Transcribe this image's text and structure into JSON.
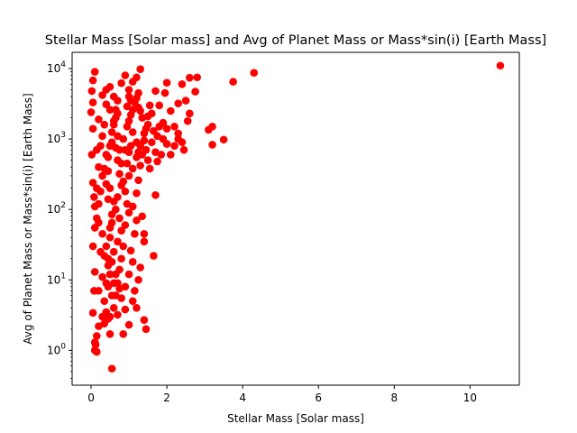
{
  "chart_data": {
    "type": "scatter",
    "title": "Stellar Mass [Solar mass] and Avg of Planet Mass or Mass*sin(i) [Earth Mass]",
    "xlabel": "Stellar Mass [Solar mass]",
    "ylabel": "Avg of Planet Mass or Mass*sin(i) [Earth Mass]",
    "xlim": [
      -0.5,
      11.3
    ],
    "ylim": [
      0.32,
      17000
    ],
    "yscale": "log",
    "grid": false,
    "marker_color": "#ff0000",
    "xticks": [
      {
        "value": 0,
        "label": "0"
      },
      {
        "value": 2,
        "label": "2"
      },
      {
        "value": 4,
        "label": "4"
      },
      {
        "value": 6,
        "label": "6"
      },
      {
        "value": 8,
        "label": "8"
      },
      {
        "value": 10,
        "label": "10"
      }
    ],
    "yticks": [
      {
        "value": 1,
        "base": "10",
        "exp": "0"
      },
      {
        "value": 10,
        "base": "10",
        "exp": "1"
      },
      {
        "value": 100,
        "base": "10",
        "exp": "2"
      },
      {
        "value": 1000,
        "base": "10",
        "exp": "3"
      },
      {
        "value": 10000,
        "base": "10",
        "exp": "4"
      }
    ],
    "series": [
      {
        "points": [
          [
            10.8,
            11000
          ],
          [
            4.3,
            8700
          ],
          [
            3.75,
            6500
          ],
          [
            3.5,
            980
          ],
          [
            3.2,
            830
          ],
          [
            3.1,
            1350
          ],
          [
            3.2,
            1500
          ],
          [
            2.8,
            7500
          ],
          [
            2.6,
            7400
          ],
          [
            2.75,
            4700
          ],
          [
            2.6,
            2300
          ],
          [
            2.4,
            6000
          ],
          [
            2.5,
            3500
          ],
          [
            2.55,
            1800
          ],
          [
            2.3,
            3200
          ],
          [
            2.3,
            1200
          ],
          [
            2.4,
            900
          ],
          [
            2.45,
            700
          ],
          [
            2.2,
            1500
          ],
          [
            2.1,
            2500
          ],
          [
            2.0,
            6300
          ],
          [
            1.95,
            4500
          ],
          [
            2.0,
            850
          ],
          [
            1.9,
            1700
          ],
          [
            1.85,
            600
          ],
          [
            1.8,
            3000
          ],
          [
            1.75,
            1100
          ],
          [
            1.7,
            4800
          ],
          [
            1.7,
            160
          ],
          [
            1.65,
            22
          ],
          [
            1.45,
            2.0
          ],
          [
            1.4,
            2.7
          ],
          [
            1.4,
            35
          ],
          [
            1.4,
            45
          ],
          [
            1.35,
            80
          ],
          [
            1.3,
            9800
          ],
          [
            1.2,
            7500
          ],
          [
            1.25,
            4500
          ],
          [
            1.1,
            6500
          ],
          [
            1.0,
            5000
          ],
          [
            0.9,
            8000
          ],
          [
            0.8,
            6200
          ],
          [
            0.85,
            1.7
          ],
          [
            0.55,
            0.55
          ],
          [
            0.5,
            1.7
          ],
          [
            0.45,
            2.8
          ],
          [
            0.35,
            2.4
          ],
          [
            0.3,
            3.0
          ],
          [
            0.2,
            2.2
          ],
          [
            0.15,
            1.6
          ],
          [
            0.12,
            1.2
          ],
          [
            0.1,
            1.0
          ],
          [
            0.15,
            0.95
          ],
          [
            0.1,
            1.3
          ],
          [
            0.05,
            3.4
          ],
          [
            0.08,
            7.0
          ],
          [
            0.1,
            13
          ],
          [
            0.05,
            30
          ],
          [
            0.1,
            55
          ],
          [
            0.15,
            75
          ],
          [
            0.08,
            150
          ],
          [
            0.05,
            240
          ],
          [
            0.02,
            600
          ],
          [
            0.05,
            1400
          ],
          [
            0.0,
            2400
          ],
          [
            0.05,
            3300
          ],
          [
            0.05,
            6800
          ],
          [
            0.1,
            9000
          ],
          [
            0.02,
            4800
          ],
          [
            0.3,
            4200
          ],
          [
            0.4,
            5000
          ],
          [
            0.5,
            5500
          ],
          [
            0.6,
            4000
          ],
          [
            0.7,
            3500
          ],
          [
            0.25,
            800
          ],
          [
            0.3,
            300
          ],
          [
            0.2,
            120
          ],
          [
            0.25,
            25
          ],
          [
            0.3,
            11
          ],
          [
            0.2,
            7
          ],
          [
            0.35,
            5
          ],
          [
            0.4,
            9
          ],
          [
            0.45,
            16
          ],
          [
            0.5,
            40
          ],
          [
            0.55,
            65
          ],
          [
            0.6,
            130
          ],
          [
            0.5,
            200
          ],
          [
            0.45,
            350
          ],
          [
            0.4,
            600
          ],
          [
            0.55,
            900
          ],
          [
            0.6,
            1800
          ],
          [
            0.65,
            2600
          ],
          [
            0.7,
            1100
          ],
          [
            0.75,
            700
          ],
          [
            0.8,
            450
          ],
          [
            0.85,
            250
          ],
          [
            0.9,
            180
          ],
          [
            0.95,
            120
          ],
          [
            1.0,
            90
          ],
          [
            0.9,
            60
          ],
          [
            0.85,
            30
          ],
          [
            0.8,
            20
          ],
          [
            0.75,
            14
          ],
          [
            0.7,
            9
          ],
          [
            0.65,
            6
          ],
          [
            0.6,
            4
          ],
          [
            0.7,
            3.2
          ],
          [
            0.8,
            5.5
          ],
          [
            0.9,
            8
          ],
          [
            1.0,
            12
          ],
          [
            1.1,
            18
          ],
          [
            1.05,
            26
          ],
          [
            1.15,
            45
          ],
          [
            1.2,
            70
          ],
          [
            1.1,
            110
          ],
          [
            1.2,
            170
          ],
          [
            1.25,
            260
          ],
          [
            1.3,
            420
          ],
          [
            1.35,
            600
          ],
          [
            1.4,
            950
          ],
          [
            1.45,
            1400
          ],
          [
            1.5,
            2100
          ],
          [
            1.55,
            3000
          ],
          [
            1.6,
            2300
          ],
          [
            1.5,
            1600
          ],
          [
            1.4,
            1200
          ],
          [
            1.3,
            800
          ],
          [
            1.2,
            550
          ],
          [
            1.1,
            380
          ],
          [
            1.0,
            300
          ],
          [
            0.95,
            450
          ],
          [
            0.9,
            700
          ],
          [
            0.85,
            1000
          ],
          [
            0.95,
            1500
          ],
          [
            1.05,
            2200
          ],
          [
            1.15,
            3300
          ],
          [
            1.25,
            2800
          ],
          [
            1.35,
            2000
          ],
          [
            1.45,
            700
          ],
          [
            1.5,
            500
          ],
          [
            1.55,
            380
          ],
          [
            1.6,
            900
          ],
          [
            1.65,
            1300
          ],
          [
            1.7,
            650
          ],
          [
            1.75,
            480
          ],
          [
            1.8,
            1500
          ],
          [
            1.9,
            1000
          ],
          [
            2.0,
            1400
          ],
          [
            2.1,
            600
          ],
          [
            2.2,
            800
          ],
          [
            2.3,
            1000
          ],
          [
            1.0,
            4000
          ],
          [
            1.05,
            3500
          ],
          [
            1.1,
            2600
          ],
          [
            0.95,
            2900
          ],
          [
            1.2,
            3800
          ],
          [
            1.3,
            2500
          ],
          [
            1.0,
            1800
          ],
          [
            1.1,
            1250
          ],
          [
            1.2,
            900
          ],
          [
            1.25,
            650
          ],
          [
            1.0,
            650
          ],
          [
            1.05,
            800
          ],
          [
            0.9,
            3.8
          ],
          [
            1.0,
            2.3
          ],
          [
            1.1,
            5
          ],
          [
            1.2,
            4
          ],
          [
            1.15,
            7
          ],
          [
            1.25,
            10
          ],
          [
            1.3,
            15
          ],
          [
            0.75,
            7.5
          ],
          [
            0.65,
            12
          ],
          [
            0.55,
            18
          ],
          [
            0.6,
            25
          ],
          [
            0.7,
            35
          ],
          [
            0.8,
            50
          ],
          [
            0.75,
            75
          ],
          [
            0.65,
            100
          ],
          [
            0.7,
            150
          ],
          [
            0.8,
            220
          ],
          [
            0.75,
            320
          ],
          [
            0.7,
            500
          ],
          [
            0.65,
            750
          ],
          [
            0.3,
            1100
          ],
          [
            0.35,
            1600
          ],
          [
            0.2,
            1900
          ],
          [
            0.15,
            700
          ],
          [
            0.2,
            400
          ],
          [
            0.25,
            180
          ],
          [
            0.1,
            110
          ],
          [
            0.15,
            200
          ],
          [
            0.2,
            65
          ],
          [
            0.3,
            45
          ],
          [
            0.35,
            22
          ],
          [
            0.45,
            8
          ],
          [
            0.4,
            3.5
          ],
          [
            0.5,
            3
          ],
          [
            0.55,
            6
          ],
          [
            0.6,
            9
          ],
          [
            0.5,
            12
          ],
          [
            0.45,
            20
          ],
          [
            0.4,
            30
          ],
          [
            0.5,
            55
          ],
          [
            0.55,
            85
          ],
          [
            0.45,
            140
          ],
          [
            0.4,
            230
          ],
          [
            0.35,
            380
          ],
          [
            0.45,
            550
          ],
          [
            0.5,
            800
          ],
          [
            0.55,
            1250
          ],
          [
            0.6,
            1600
          ],
          [
            0.65,
            2000
          ],
          [
            0.7,
            2300
          ],
          [
            0.5,
            2600
          ],
          [
            0.4,
            3100
          ]
        ]
      }
    ]
  }
}
